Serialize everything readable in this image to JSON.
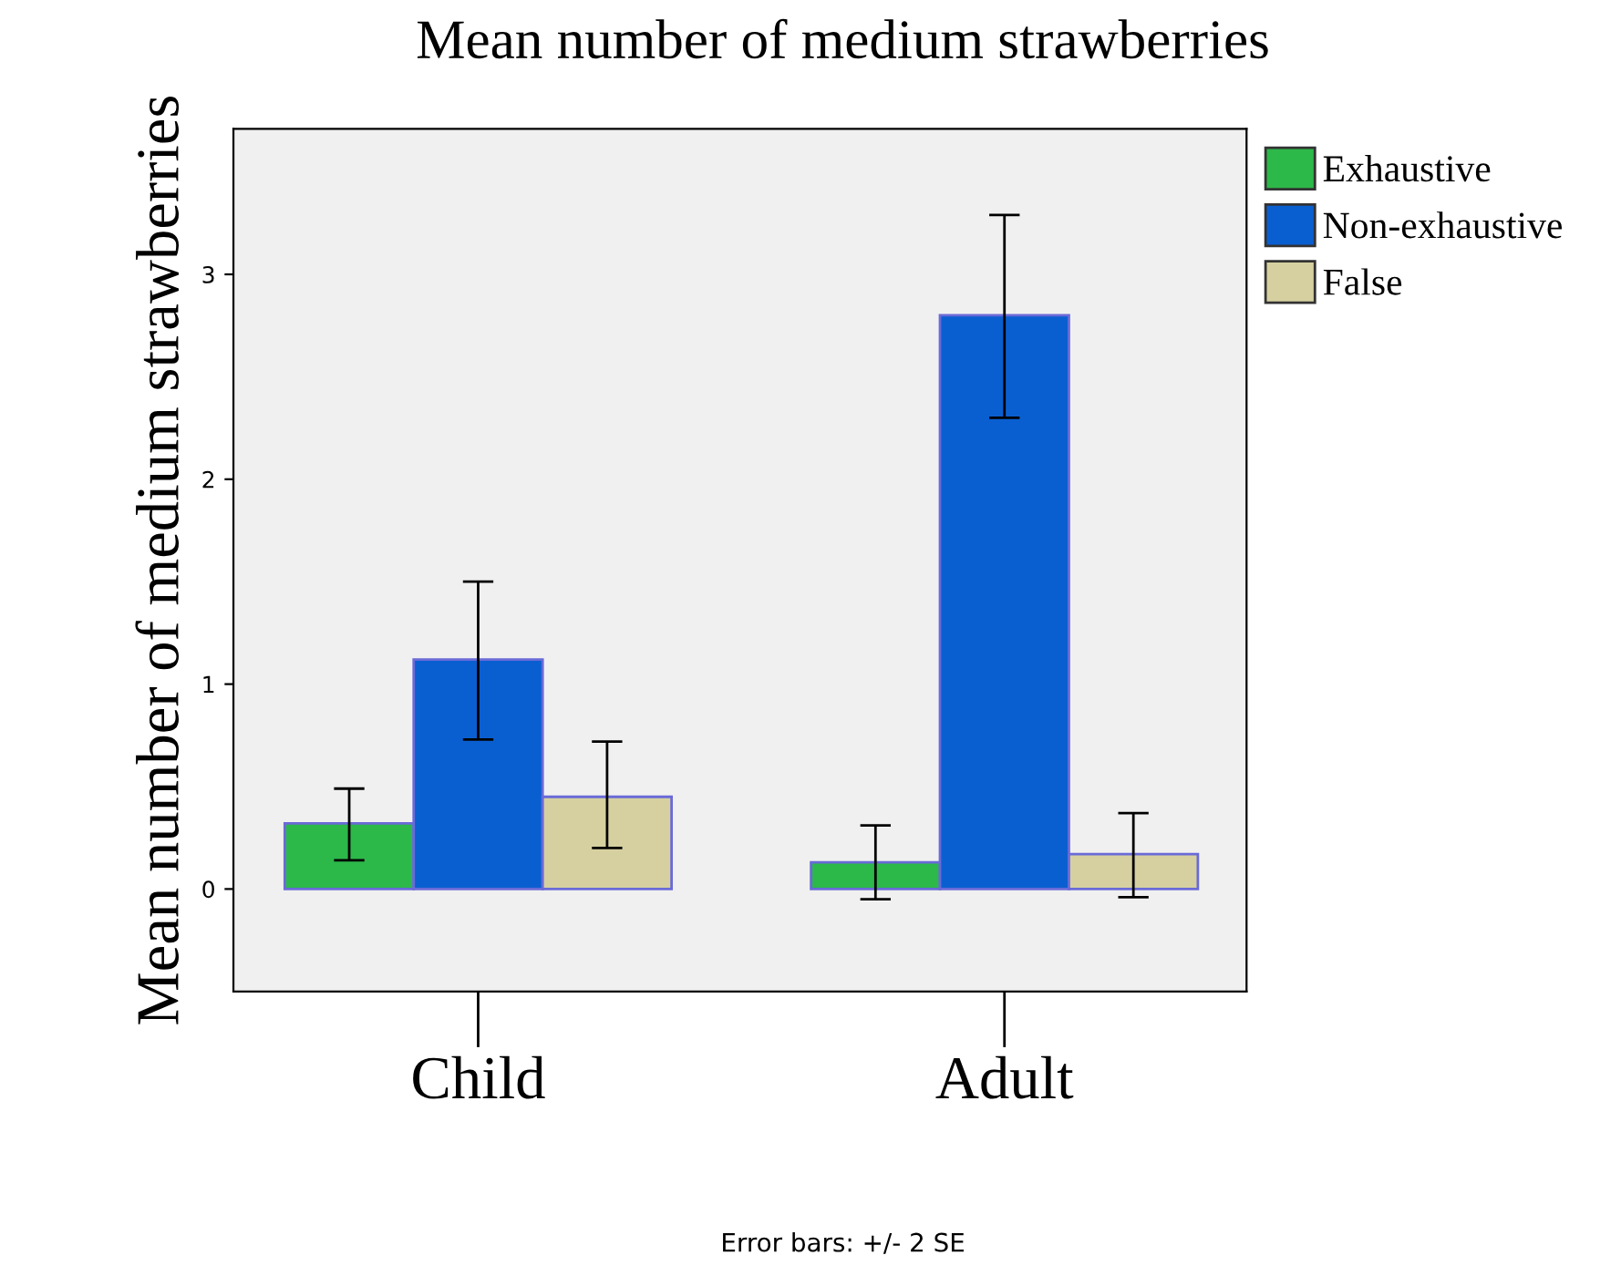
{
  "chart_data": {
    "type": "bar",
    "title": "Mean number of medium strawberries",
    "ylabel": "Mean number of medium strawberries",
    "categories": [
      "Child",
      "Adult"
    ],
    "series": [
      {
        "name": "Exhaustive",
        "color": "#2db84a",
        "values": [
          0.32,
          0.13
        ],
        "errors": [
          [
            0.14,
            0.49
          ],
          [
            -0.05,
            0.31
          ]
        ]
      },
      {
        "name": "Non-exhaustive",
        "color": "#0a5fd0",
        "values": [
          1.12,
          2.8
        ],
        "errors": [
          [
            0.73,
            1.5
          ],
          [
            2.3,
            3.29
          ]
        ]
      },
      {
        "name": "False",
        "color": "#d6d0a0",
        "values": [
          0.45,
          0.17
        ],
        "errors": [
          [
            0.2,
            0.72
          ],
          [
            -0.04,
            0.37
          ]
        ]
      }
    ],
    "ylim": [
      -0.5,
      3.71
    ],
    "yticks": [
      0,
      1,
      2,
      3
    ],
    "grid": false,
    "legend": "top right",
    "annotations": [
      "Error bars: +/- 2 SE"
    ]
  }
}
